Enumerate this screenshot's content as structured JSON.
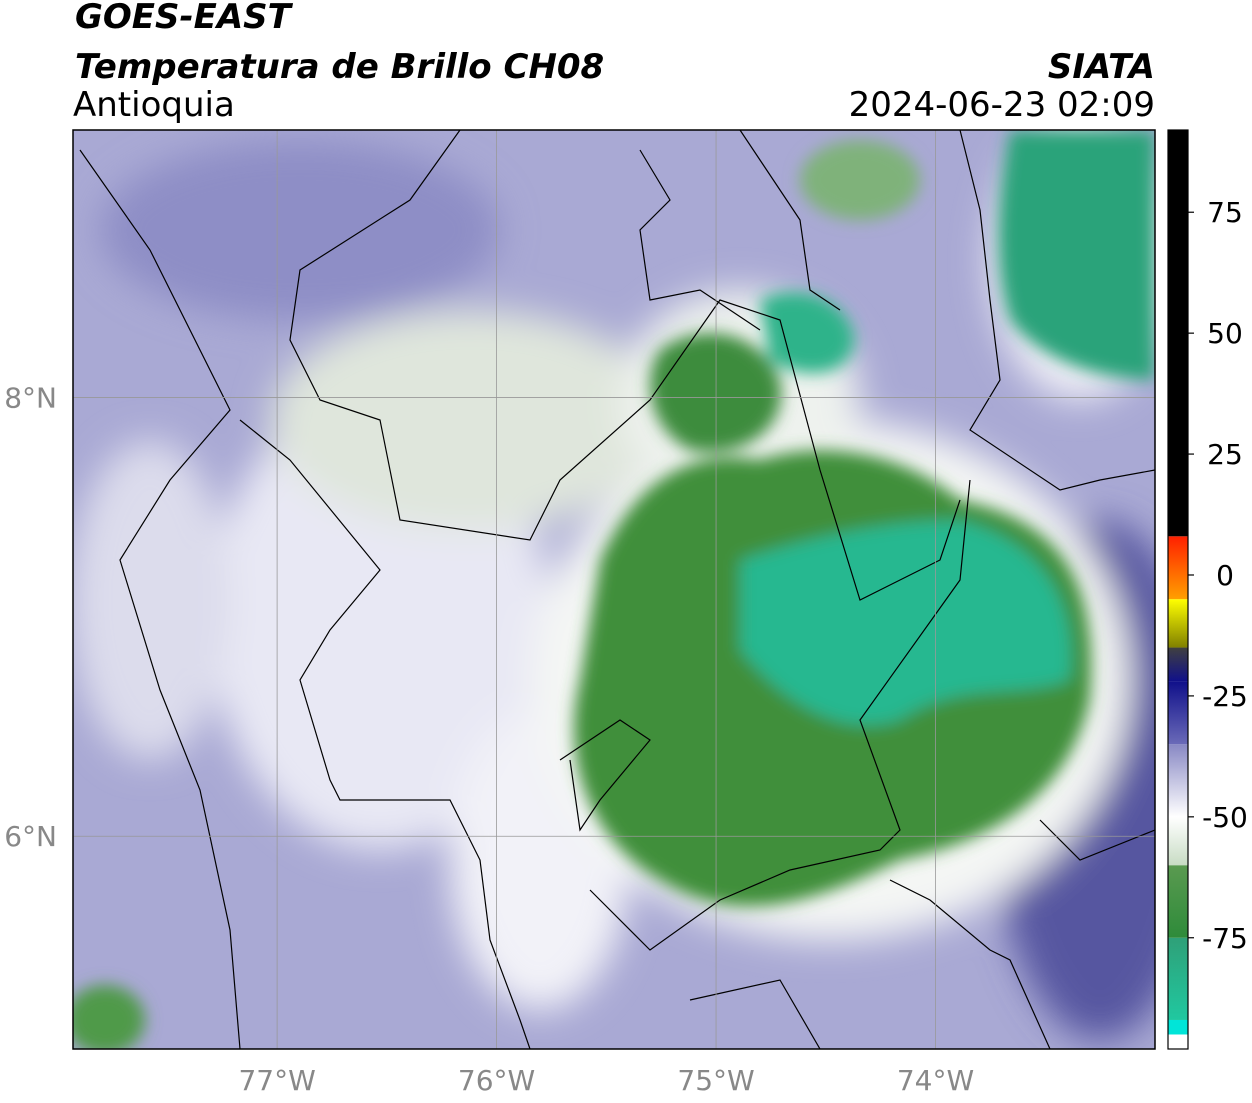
{
  "header": {
    "satellite": "GOES-EAST",
    "product": "Temperatura de Brillo CH08",
    "region": "Antioquia",
    "source": "SIATA",
    "datetime": "2024-06-23 02:09"
  },
  "map": {
    "xlim": [
      -77.93,
      -73.0
    ],
    "ylim": [
      5.03,
      9.22
    ],
    "xticks": [
      {
        "value": -77,
        "label": "77°W"
      },
      {
        "value": -76,
        "label": "76°W"
      },
      {
        "value": -75,
        "label": "75°W"
      },
      {
        "value": -74,
        "label": "74°W"
      }
    ],
    "yticks": [
      {
        "value": 8,
        "label": "8°N"
      },
      {
        "value": 6,
        "label": "6°N"
      }
    ]
  },
  "colorbar": {
    "lim": [
      -98,
      92
    ],
    "ticks": [
      75,
      50,
      25,
      0,
      -25,
      -50,
      -75
    ]
  }
}
